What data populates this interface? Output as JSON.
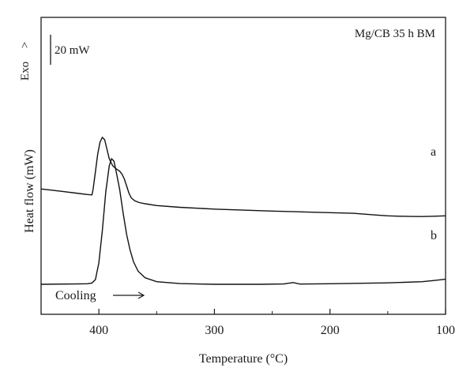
{
  "chart_data": {
    "type": "line",
    "title": "",
    "annotation": "Mg/CB 35 h BM",
    "xlabel": "Temperature (°C)",
    "ylabel": "Heat flow (mW)",
    "exo_label": "Exo",
    "exo_arrow": ">",
    "scale_bar_label": "20 mW",
    "scale_bar_mW": 20,
    "cooling_label": "Cooling",
    "x_reversed": true,
    "xlim": [
      450,
      100
    ],
    "ylim": [
      0,
      200
    ],
    "x_ticks": [
      400,
      300,
      200,
      100
    ],
    "x_tick_labels": [
      "400",
      "300",
      "200",
      "100"
    ],
    "grid": false,
    "series": [
      {
        "name": "a",
        "points": [
          [
            450,
            80.5
          ],
          [
            440,
            79.4
          ],
          [
            430,
            78.2
          ],
          [
            420,
            77
          ],
          [
            410,
            75.8
          ],
          [
            406,
            75.5
          ],
          [
            405,
            80
          ],
          [
            403,
            95
          ],
          [
            401,
            110
          ],
          [
            399,
            120
          ],
          [
            397,
            124
          ],
          [
            395,
            122
          ],
          [
            393,
            114
          ],
          [
            391,
            106
          ],
          [
            388,
            100
          ],
          [
            385,
            97.5
          ],
          [
            382,
            95.5
          ],
          [
            380,
            93
          ],
          [
            378,
            89
          ],
          [
            376,
            83
          ],
          [
            374,
            77
          ],
          [
            372,
            73
          ],
          [
            369,
            70.5
          ],
          [
            365,
            69
          ],
          [
            360,
            68
          ],
          [
            350,
            66.5
          ],
          [
            330,
            65
          ],
          [
            300,
            63.5
          ],
          [
            270,
            62.5
          ],
          [
            250,
            61.8
          ],
          [
            230,
            61.3
          ],
          [
            200,
            60.5
          ],
          [
            180,
            59.9
          ],
          [
            160,
            58.5
          ],
          [
            150,
            57.8
          ],
          [
            140,
            57.5
          ],
          [
            130,
            57.3
          ],
          [
            120,
            57.2
          ],
          [
            110,
            57.5
          ],
          [
            100,
            57.8
          ]
        ]
      },
      {
        "name": "b",
        "points": [
          [
            450,
            0
          ],
          [
            420,
            0.3
          ],
          [
            410,
            0.5
          ],
          [
            406,
            1
          ],
          [
            403,
            4
          ],
          [
            400,
            18
          ],
          [
            397,
            45
          ],
          [
            394,
            78
          ],
          [
            391,
            100
          ],
          [
            389,
            106
          ],
          [
            387,
            104
          ],
          [
            385,
            95
          ],
          [
            382,
            80
          ],
          [
            379,
            60
          ],
          [
            376,
            42
          ],
          [
            373,
            29
          ],
          [
            370,
            19
          ],
          [
            366,
            11
          ],
          [
            360,
            5.5
          ],
          [
            350,
            2.2
          ],
          [
            330,
            0.6
          ],
          [
            300,
            0
          ],
          [
            260,
            0
          ],
          [
            240,
            0.3
          ],
          [
            232,
            1.5
          ],
          [
            226,
            0.2
          ],
          [
            200,
            0.5
          ],
          [
            150,
            1.2
          ],
          [
            120,
            2.2
          ],
          [
            110,
            3.2
          ],
          [
            100,
            4.3
          ]
        ]
      }
    ]
  }
}
